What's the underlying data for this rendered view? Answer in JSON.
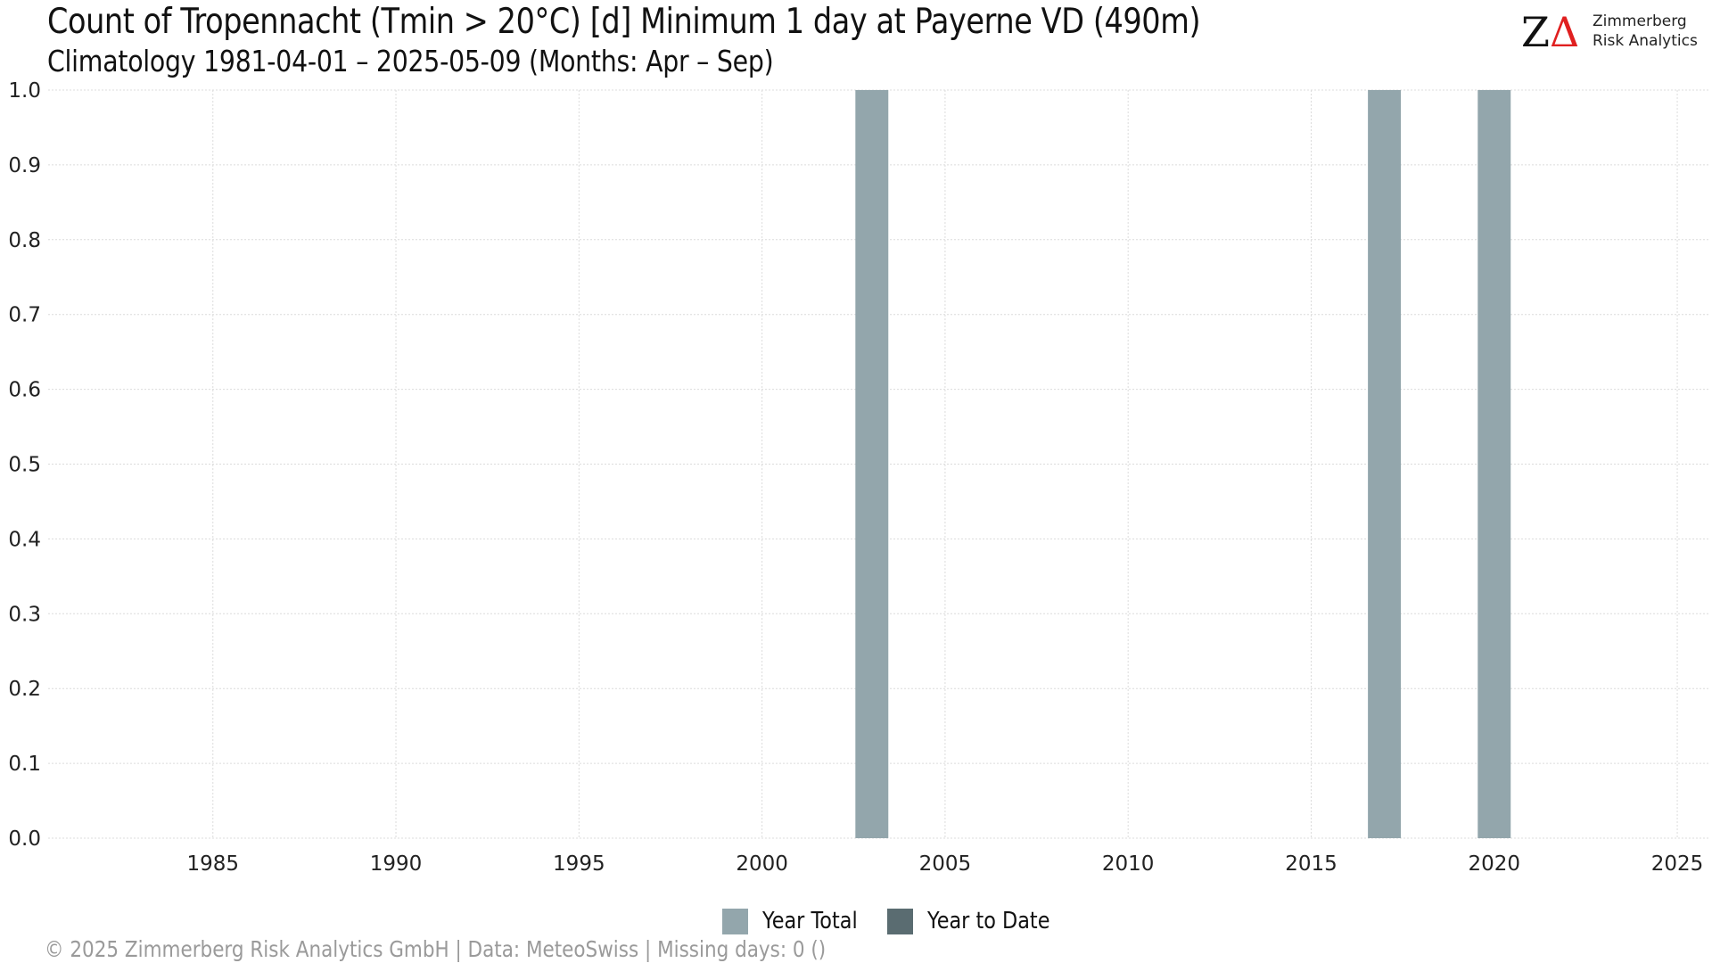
{
  "header": {
    "title": "Count of Tropennacht (Tmin > 20°C) [d] Minimum 1 day at Payerne  VD (490m)",
    "subtitle": "Climatology 1981-04-01 – 2025-05-09 (Months: Apr – Sep)"
  },
  "logo": {
    "mark_z": "Z",
    "mark_delta": "Δ",
    "line1": "Zimmerberg",
    "line2": "Risk Analytics",
    "delta_color": "#e01f1f"
  },
  "footer": {
    "text": "©  2025 Zimmerberg Risk Analytics GmbH | Data: MeteoSwiss | Missing days: 0 ()"
  },
  "chart_data": {
    "type": "bar",
    "title": "Count of Tropennacht (Tmin > 20°C) [d] Minimum 1 day at Payerne  VD (490m)",
    "subtitle": "Climatology 1981-04-01 – 2025-05-09 (Months: Apr – Sep)",
    "xlabel": "",
    "ylabel": "",
    "xlim": [
      1980.5,
      2025.9
    ],
    "ylim": [
      0,
      1.0
    ],
    "x_ticks": [
      1985,
      1990,
      1995,
      2000,
      2005,
      2010,
      2015,
      2020,
      2025
    ],
    "y_ticks": [
      0.0,
      0.1,
      0.2,
      0.3,
      0.4,
      0.5,
      0.6,
      0.7,
      0.8,
      0.9,
      1.0
    ],
    "grid": true,
    "legend_position": "bottom",
    "series": [
      {
        "name": "Year Total",
        "color": "#93a6ac",
        "points": [
          {
            "x": 2003,
            "y": 1
          },
          {
            "x": 2017,
            "y": 1
          },
          {
            "x": 2020,
            "y": 1
          }
        ]
      },
      {
        "name": "Year to Date",
        "color": "#5a6c71",
        "points": []
      }
    ]
  }
}
